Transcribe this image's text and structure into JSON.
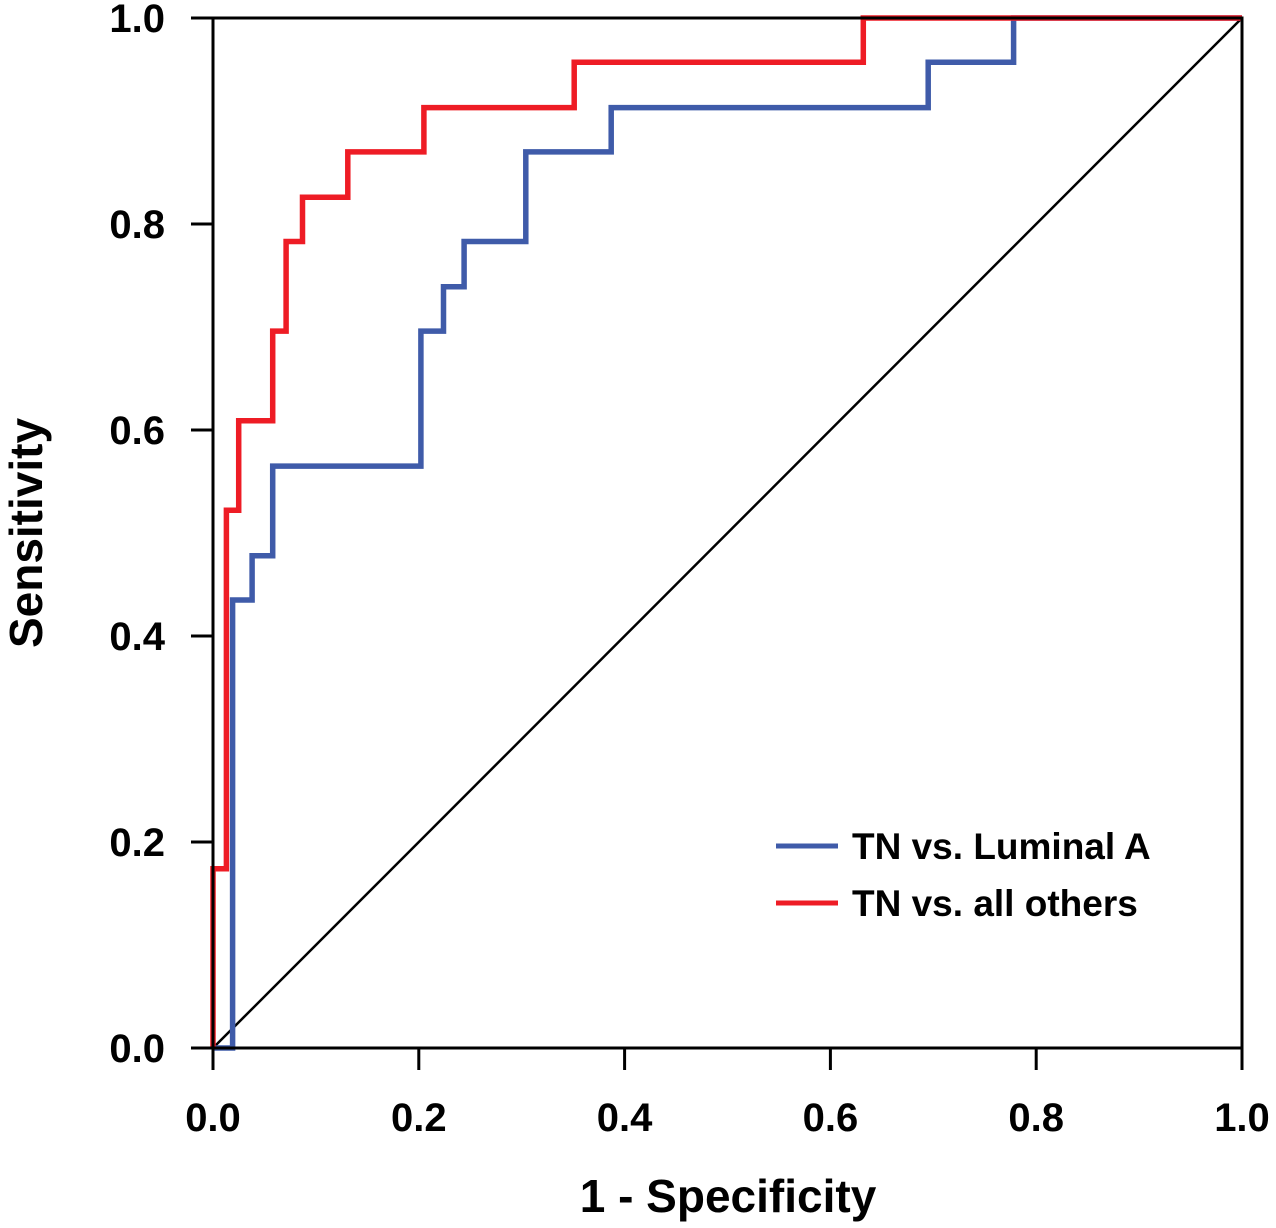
{
  "chart_data": {
    "type": "line",
    "title": "",
    "xlabel": "1 - Specificity",
    "ylabel": "Sensitivity",
    "xlim": [
      0,
      1
    ],
    "ylim": [
      0,
      1
    ],
    "xticks": [
      "0.0",
      "0.2",
      "0.4",
      "0.6",
      "0.8",
      "1.0"
    ],
    "yticks": [
      "0.0",
      "0.2",
      "0.4",
      "0.6",
      "0.8",
      "1.0"
    ],
    "grid": false,
    "legend_position": "bottom-right",
    "reference_line": {
      "x": [
        0,
        1
      ],
      "y": [
        0,
        1
      ],
      "color": "#000000"
    },
    "series": [
      {
        "name": "TN vs. Luminal A",
        "color": "#3F5BA9",
        "x": [
          0,
          0.019,
          0.019,
          0.038,
          0.038,
          0.058,
          0.058,
          0.202,
          0.202,
          0.224,
          0.224,
          0.244,
          0.244,
          0.304,
          0.304,
          0.387,
          0.387,
          0.695,
          0.695,
          0.778,
          0.778,
          1.0
        ],
        "y": [
          0,
          0,
          0.435,
          0.435,
          0.478,
          0.478,
          0.565,
          0.565,
          0.696,
          0.696,
          0.739,
          0.739,
          0.783,
          0.783,
          0.87,
          0.87,
          0.913,
          0.913,
          0.957,
          0.957,
          1.0,
          1.0
        ]
      },
      {
        "name": "TN vs. all others",
        "color": "#EE1C25",
        "x": [
          0,
          0,
          0.013,
          0.013,
          0.025,
          0.025,
          0.058,
          0.058,
          0.071,
          0.071,
          0.087,
          0.087,
          0.131,
          0.131,
          0.205,
          0.205,
          0.351,
          0.351,
          0.632,
          0.632,
          1.0
        ],
        "y": [
          0,
          0.174,
          0.174,
          0.522,
          0.522,
          0.609,
          0.609,
          0.696,
          0.696,
          0.783,
          0.783,
          0.826,
          0.826,
          0.87,
          0.87,
          0.913,
          0.913,
          0.957,
          0.957,
          1.0,
          1.0
        ]
      }
    ]
  }
}
